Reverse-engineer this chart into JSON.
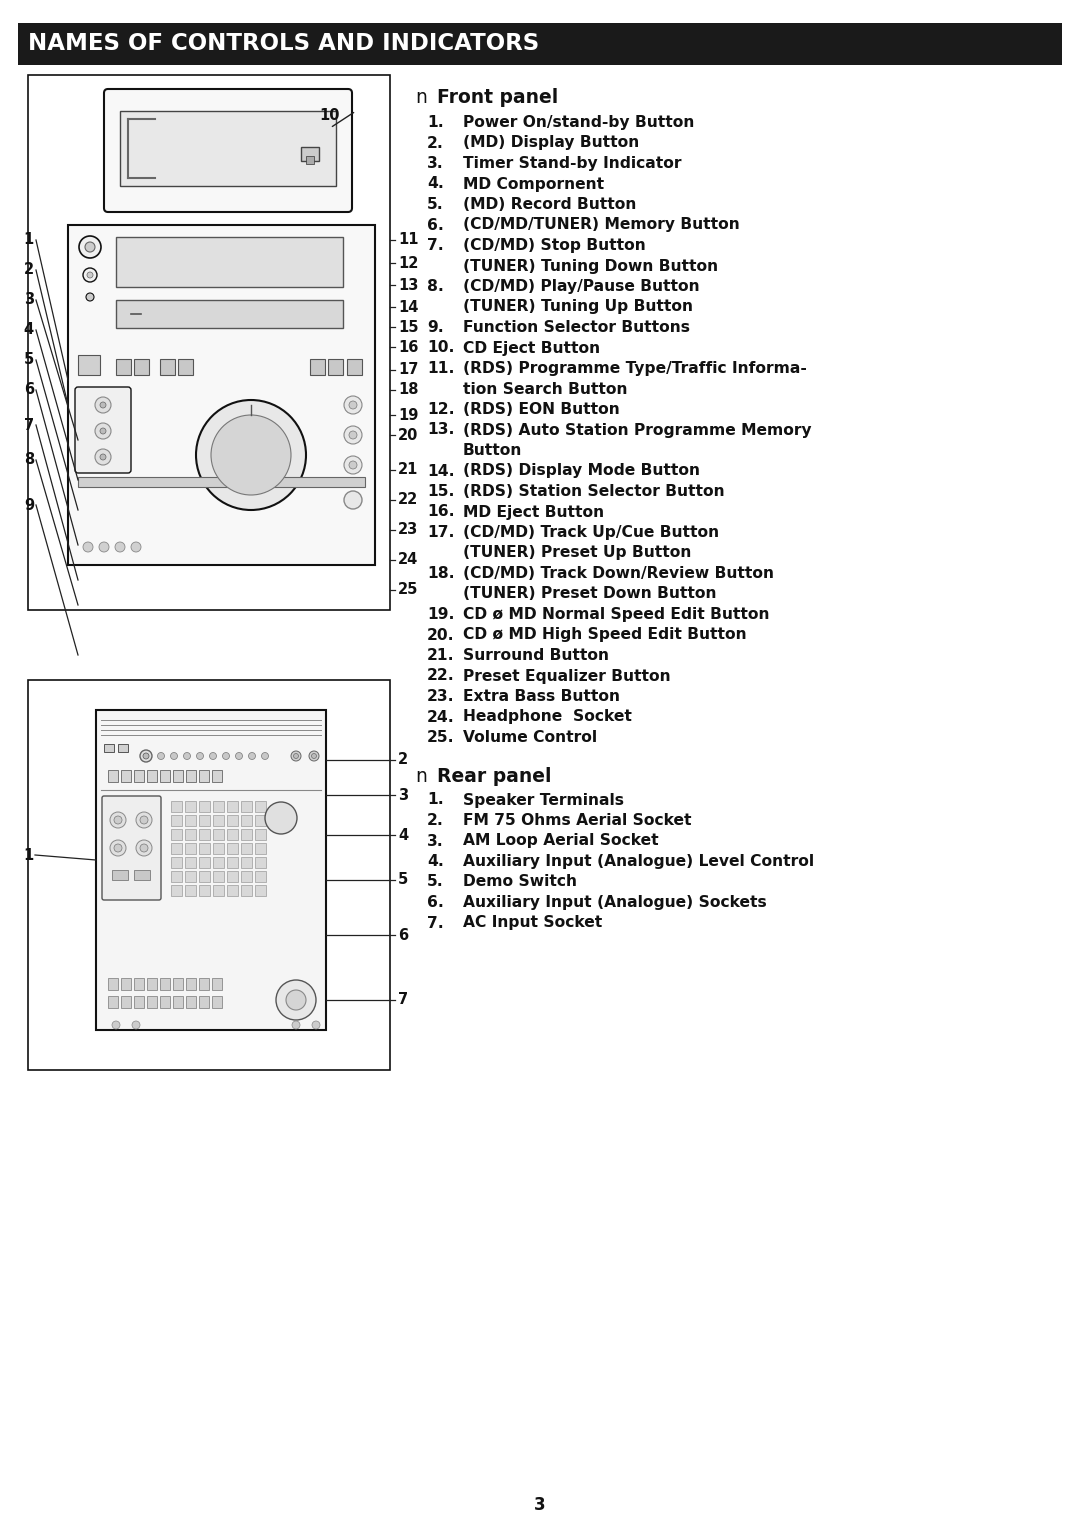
{
  "title": "NAMES OF CONTROLS AND INDICATORS",
  "title_bg": "#1a1a1a",
  "title_color": "#ffffff",
  "page_bg": "#ffffff",
  "page_number": "3",
  "front_panel_label": "n  Front panel",
  "rear_panel_label": "n  Rear panel",
  "front_items": [
    [
      "1.",
      "Power On/stand-by Button",
      null
    ],
    [
      "2.",
      "(MD) Display Button",
      null
    ],
    [
      "3.",
      "Timer Stand-by Indicator",
      null
    ],
    [
      "4.",
      "MD Compornent",
      null
    ],
    [
      "5.",
      "(MD) Record Button",
      null
    ],
    [
      "6.",
      "(CD/MD/TUNER) Memory Button",
      null
    ],
    [
      "7.",
      "(CD/MD) Stop Button",
      "(TUNER) Tuning Down Button"
    ],
    [
      "8.",
      "(CD/MD) Play/Pause Button",
      "(TUNER) Tuning Up Button"
    ],
    [
      "9.",
      "Function Selector Buttons",
      null
    ],
    [
      "10.",
      "CD Eject Button",
      null
    ],
    [
      "11.",
      "(RDS) Programme Type/Traffic Informa-",
      "tion Search Button"
    ],
    [
      "12.",
      "(RDS) EON Button",
      null
    ],
    [
      "13.",
      "(RDS) Auto Station Programme Memory",
      "Button"
    ],
    [
      "14.",
      "(RDS) Display Mode Button",
      null
    ],
    [
      "15.",
      "(RDS) Station Selector Button",
      null
    ],
    [
      "16.",
      "MD Eject Button",
      null
    ],
    [
      "17.",
      "(CD/MD) Track Up/Cue Button",
      "(TUNER) Preset Up Button"
    ],
    [
      "18.",
      "(CD/MD) Track Down/Review Button",
      "(TUNER) Preset Down Button"
    ],
    [
      "19.",
      "CD ø MD Normal Speed Edit Button",
      null
    ],
    [
      "20.",
      "CD ø MD High Speed Edit Button",
      null
    ],
    [
      "21.",
      "Surround Button",
      null
    ],
    [
      "22.",
      "Preset Equalizer Button",
      null
    ],
    [
      "23.",
      "Extra Bass Button",
      null
    ],
    [
      "24.",
      "Headphone  Socket",
      null
    ],
    [
      "25.",
      "Volume Control",
      null
    ]
  ],
  "rear_items": [
    [
      "1.",
      "Speaker Terminals"
    ],
    [
      "2.",
      "FM 75 Ohms Aerial Socket"
    ],
    [
      "3.",
      "AM Loop Aerial Socket"
    ],
    [
      "4.",
      "Auxiliary Input (Analogue) Level Control"
    ],
    [
      "5.",
      "Demo Switch"
    ],
    [
      "6.",
      "Auxiliary Input (Analogue) Sockets"
    ],
    [
      "7.",
      "AC Input Socket"
    ]
  ],
  "line_color": "#222222",
  "box_edge": "#111111",
  "text_color": "#111111",
  "diagram_bg": "#ffffff"
}
